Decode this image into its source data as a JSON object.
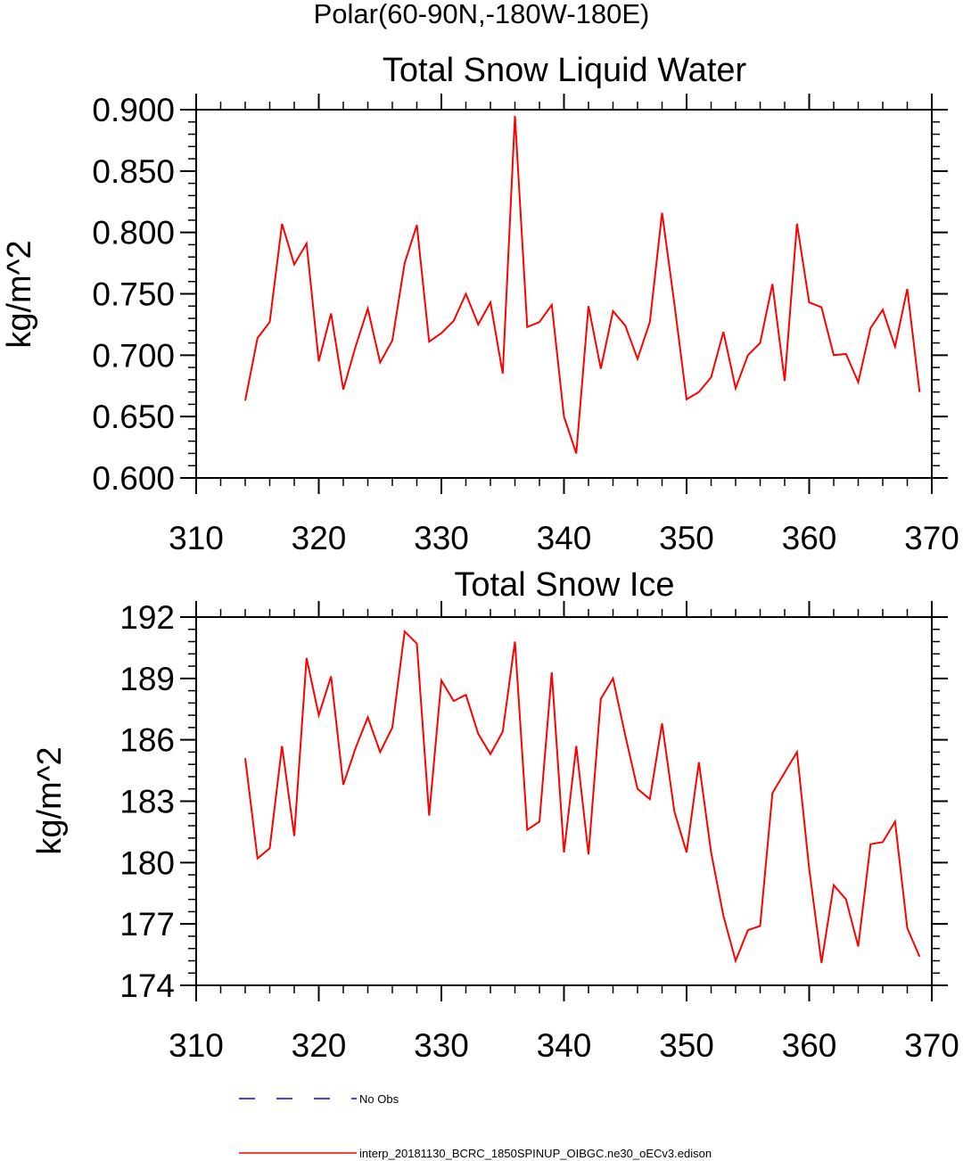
{
  "page_title": "Polar(60-90N,-180W-180E)",
  "chart_data": [
    {
      "type": "line",
      "title": "Total Snow Liquid Water",
      "xlabel": "",
      "ylabel": "kg/m^2",
      "xlim": [
        310,
        370
      ],
      "ylim": [
        0.6,
        0.9
      ],
      "xticks": [
        310,
        320,
        330,
        340,
        350,
        360,
        370
      ],
      "xtick_labels": [
        "310",
        "320",
        "330",
        "340",
        "350",
        "360",
        "370"
      ],
      "yticks": [
        0.6,
        0.65,
        0.7,
        0.75,
        0.8,
        0.85,
        0.9
      ],
      "ytick_labels": [
        "0.600",
        "0.650",
        "0.700",
        "0.750",
        "0.800",
        "0.850",
        "0.900"
      ],
      "series": [
        {
          "name": "interp_20181130_BCRC_1850SPINUP_OIBGC.ne30_oECv3.edison",
          "color": "#ff0000",
          "x": [
            314,
            315,
            316,
            317,
            318,
            319,
            320,
            321,
            322,
            323,
            324,
            325,
            326,
            327,
            328,
            329,
            330,
            331,
            332,
            333,
            334,
            335,
            336,
            337,
            338,
            339,
            340,
            341,
            342,
            343,
            344,
            345,
            346,
            347,
            348,
            349,
            350,
            351,
            352,
            353,
            354,
            355,
            356,
            357,
            358,
            359,
            360,
            361,
            362,
            363,
            364,
            365,
            366,
            367,
            368,
            369
          ],
          "values": [
            0.663,
            0.714,
            0.727,
            0.807,
            0.774,
            0.791,
            0.695,
            0.734,
            0.672,
            0.707,
            0.738,
            0.694,
            0.712,
            0.775,
            0.806,
            0.711,
            0.718,
            0.728,
            0.75,
            0.725,
            0.743,
            0.685,
            0.895,
            0.723,
            0.727,
            0.741,
            0.65,
            0.62,
            0.74,
            0.689,
            0.736,
            0.724,
            0.697,
            0.727,
            0.816,
            0.742,
            0.664,
            0.67,
            0.682,
            0.719,
            0.673,
            0.7,
            0.71,
            0.758,
            0.679,
            0.807,
            0.743,
            0.739,
            0.7,
            0.701,
            0.678,
            0.722,
            0.737,
            0.707,
            0.754,
            0.67
          ]
        }
      ]
    },
    {
      "type": "line",
      "title": "Total Snow Ice",
      "xlabel": "",
      "ylabel": "kg/m^2",
      "xlim": [
        310,
        370
      ],
      "ylim": [
        174,
        192
      ],
      "xticks": [
        310,
        320,
        330,
        340,
        350,
        360,
        370
      ],
      "xtick_labels": [
        "310",
        "320",
        "330",
        "340",
        "350",
        "360",
        "370"
      ],
      "yticks": [
        174,
        177,
        180,
        183,
        186,
        189,
        192
      ],
      "ytick_labels": [
        "174",
        "177",
        "180",
        "183",
        "186",
        "189",
        "192"
      ],
      "series": [
        {
          "name": "interp_20181130_BCRC_1850SPINUP_OIBGC.ne30_oECv3.edison",
          "color": "#ff0000",
          "x": [
            314,
            315,
            316,
            317,
            318,
            319,
            320,
            321,
            322,
            323,
            324,
            325,
            326,
            327,
            328,
            329,
            330,
            331,
            332,
            333,
            334,
            335,
            336,
            337,
            338,
            339,
            340,
            341,
            342,
            343,
            344,
            345,
            346,
            347,
            348,
            349,
            350,
            351,
            352,
            353,
            354,
            355,
            356,
            357,
            358,
            359,
            360,
            361,
            362,
            363,
            364,
            365,
            366,
            367,
            368,
            369
          ],
          "values": [
            185.1,
            180.2,
            180.7,
            185.7,
            181.3,
            190.0,
            187.2,
            189.1,
            183.8,
            185.6,
            187.1,
            185.4,
            186.6,
            191.3,
            190.7,
            182.3,
            188.9,
            187.9,
            188.2,
            186.3,
            185.3,
            186.4,
            190.8,
            181.6,
            182.0,
            189.3,
            180.5,
            185.7,
            180.4,
            188.0,
            189.0,
            186.2,
            183.6,
            183.1,
            186.8,
            182.5,
            180.5,
            184.9,
            180.5,
            177.4,
            175.2,
            176.7,
            176.9,
            183.4,
            184.4,
            185.4,
            179.7,
            175.1,
            178.9,
            178.2,
            175.9,
            180.9,
            181.0,
            182.0,
            176.8,
            175.4
          ]
        }
      ]
    }
  ],
  "legend": {
    "entries": [
      {
        "label": "No Obs",
        "color": "#0000ff",
        "style": "dashed"
      },
      {
        "label": "interp_20181130_BCRC_1850SPINUP_OIBGC.ne30_oECv3.edison",
        "color": "#ff0000",
        "style": "solid"
      }
    ]
  }
}
